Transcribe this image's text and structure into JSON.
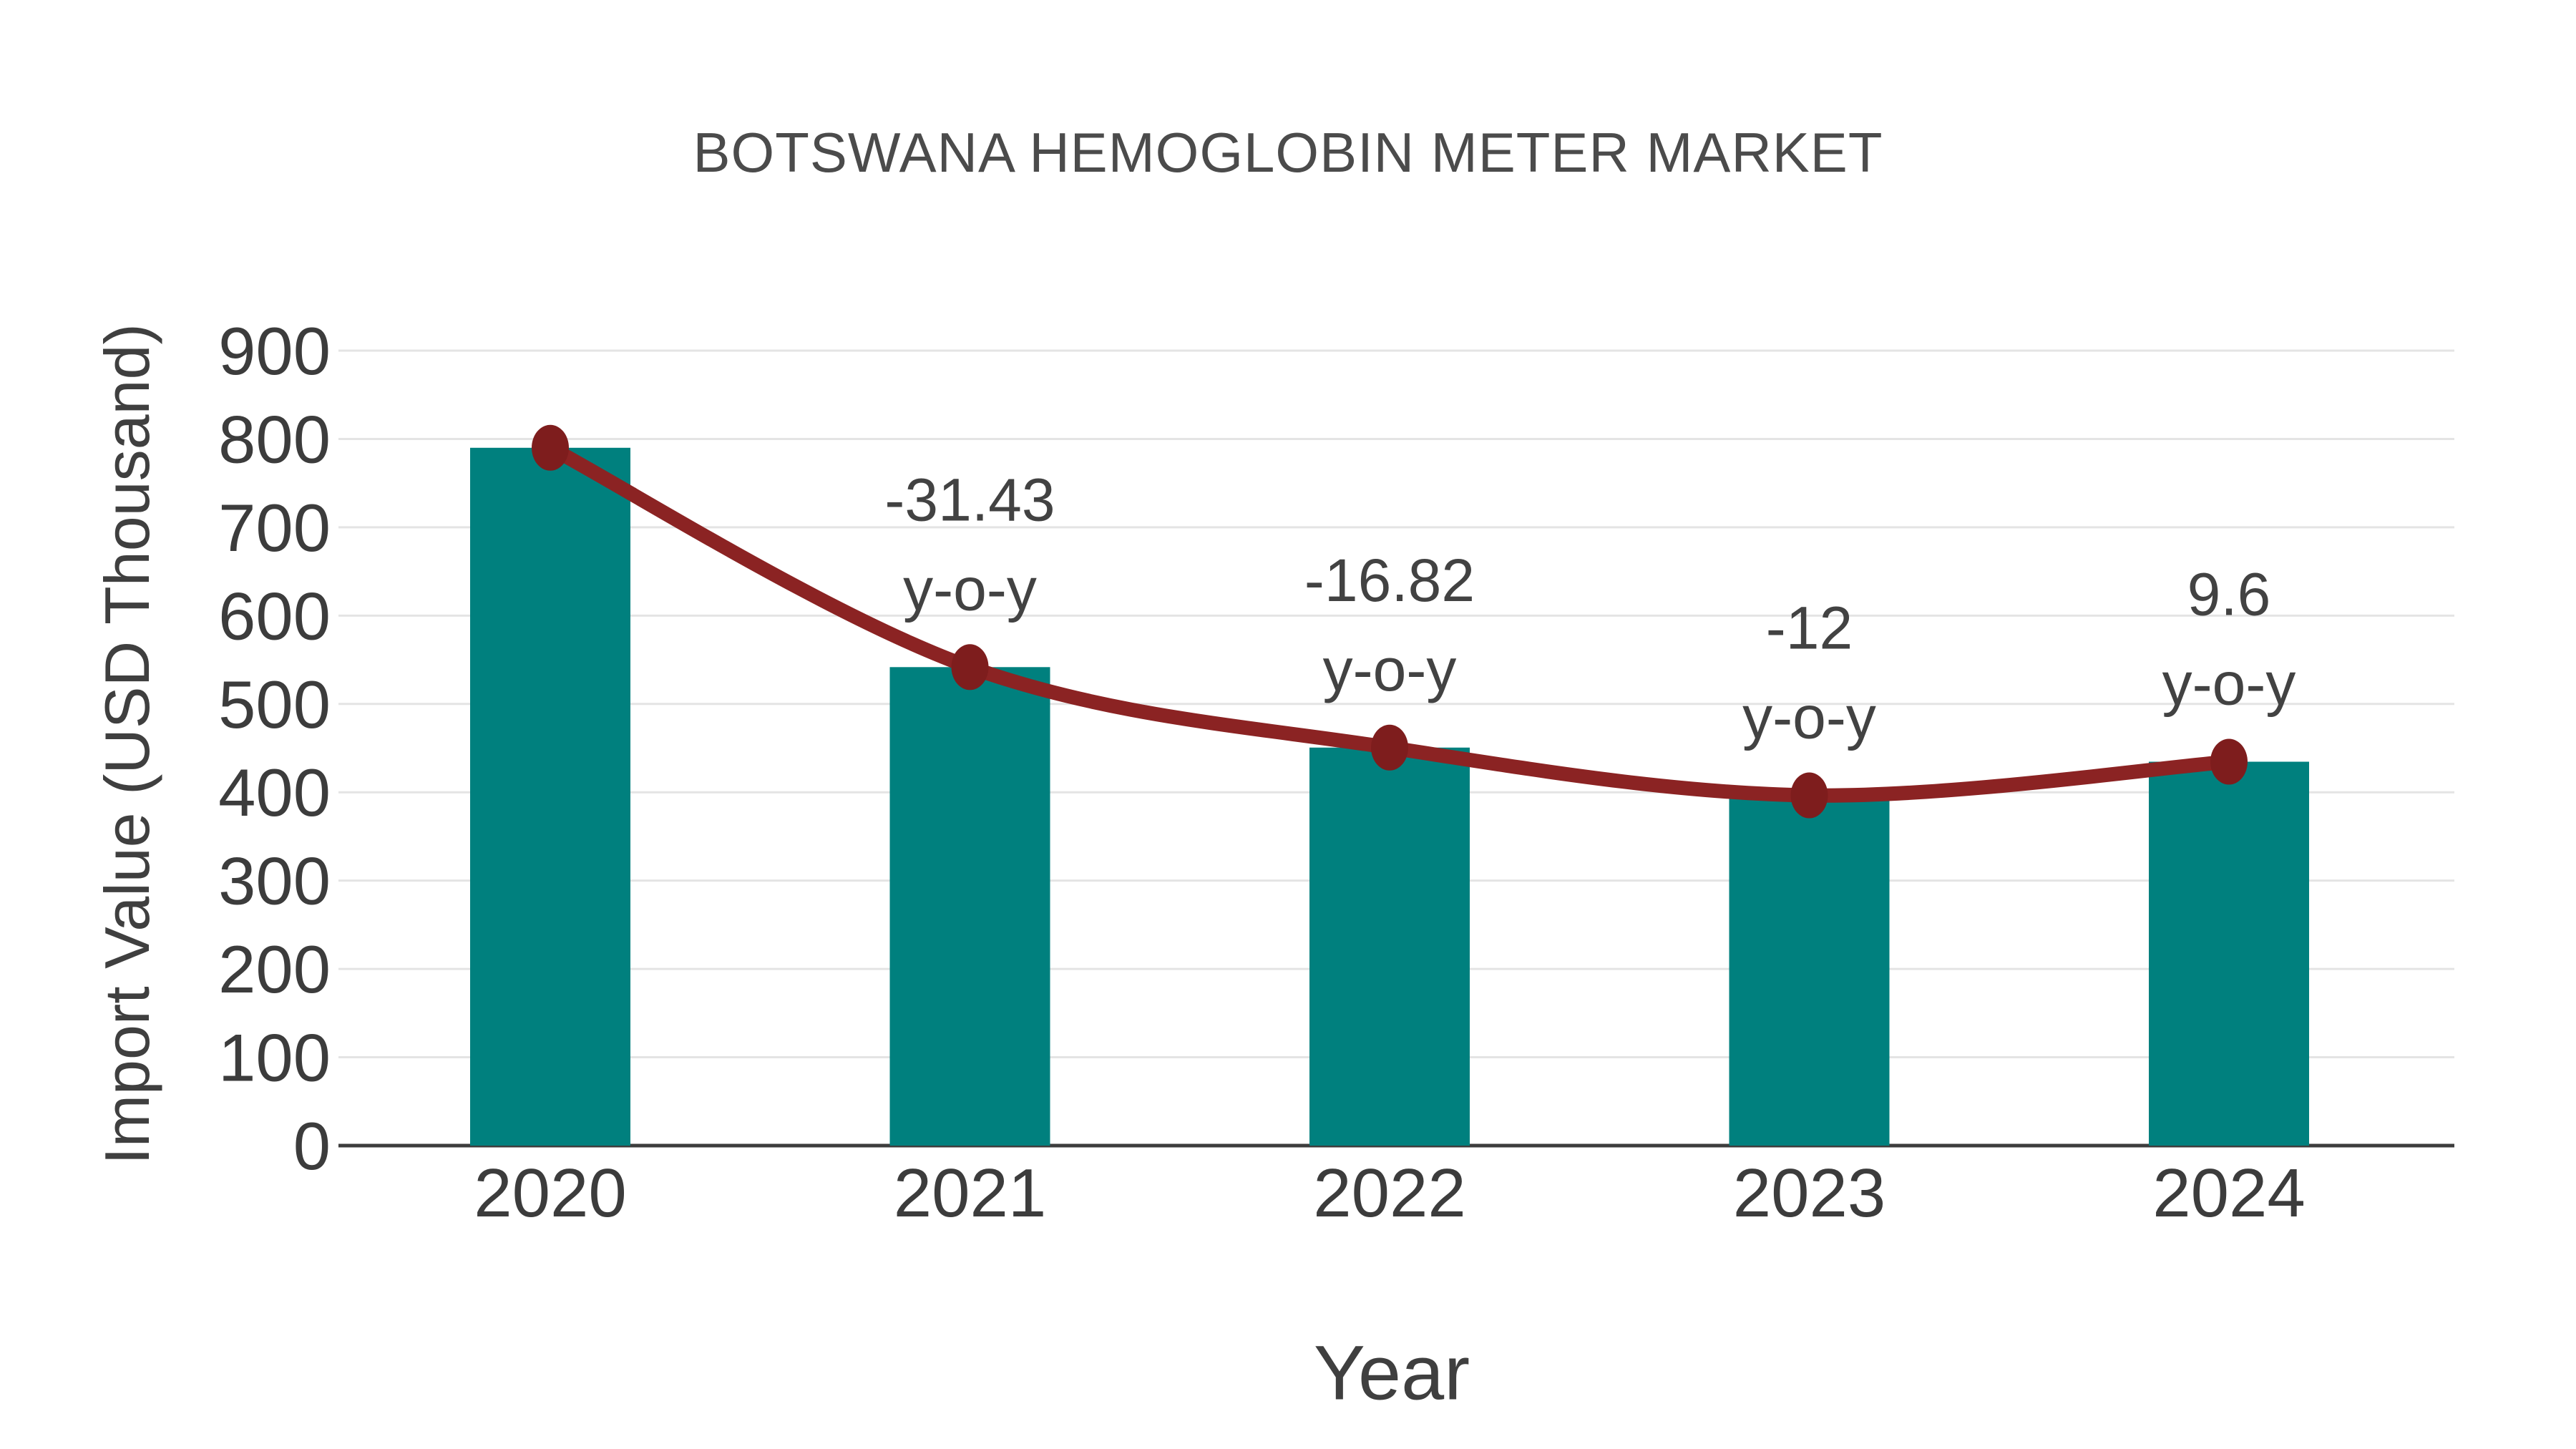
{
  "chart_data": {
    "type": "bar",
    "title": "BOTSWANA HEMOGLOBIN METER MARKET",
    "xlabel": "Year",
    "ylabel": "Import Value (USD Thousand)",
    "categories": [
      "2020",
      "2021",
      "2022",
      "2023",
      "2024"
    ],
    "series": [
      {
        "name": "Import Value (USD Thousand)",
        "type": "bar",
        "values": [
          790,
          541.7,
          450.6,
          396.5,
          434.6
        ],
        "color": "#00807E"
      },
      {
        "name": "y-o-y trend line",
        "type": "line",
        "values": [
          790,
          541.7,
          450.6,
          396.5,
          434.6
        ],
        "color": "#8B2323",
        "marker_color": "#7E1D1D"
      }
    ],
    "annotations": [
      {
        "category": "2021",
        "value_label": "-31.43",
        "suffix_label": "y-o-y"
      },
      {
        "category": "2022",
        "value_label": "-16.82",
        "suffix_label": "y-o-y"
      },
      {
        "category": "2023",
        "value_label": "-12",
        "suffix_label": "y-o-y"
      },
      {
        "category": "2024",
        "value_label": "9.6",
        "suffix_label": "y-o-y"
      }
    ],
    "ylim": [
      0,
      900
    ],
    "yticks": [
      0,
      100,
      200,
      300,
      400,
      500,
      600,
      700,
      800,
      900
    ],
    "grid": "horizontal",
    "legend_position": "none"
  },
  "colors": {
    "background": "#FFFFFF",
    "bar": "#00807E",
    "line": "#8B2323",
    "marker": "#7E1D1D",
    "gridline": "#E4E4E4",
    "axis_line": "#3D3D3D",
    "tick_text": "#3C3C3C",
    "title_text": "#4B4B4B",
    "annotation_text": "#424242",
    "axis_label_text": "#3F3F3F"
  }
}
